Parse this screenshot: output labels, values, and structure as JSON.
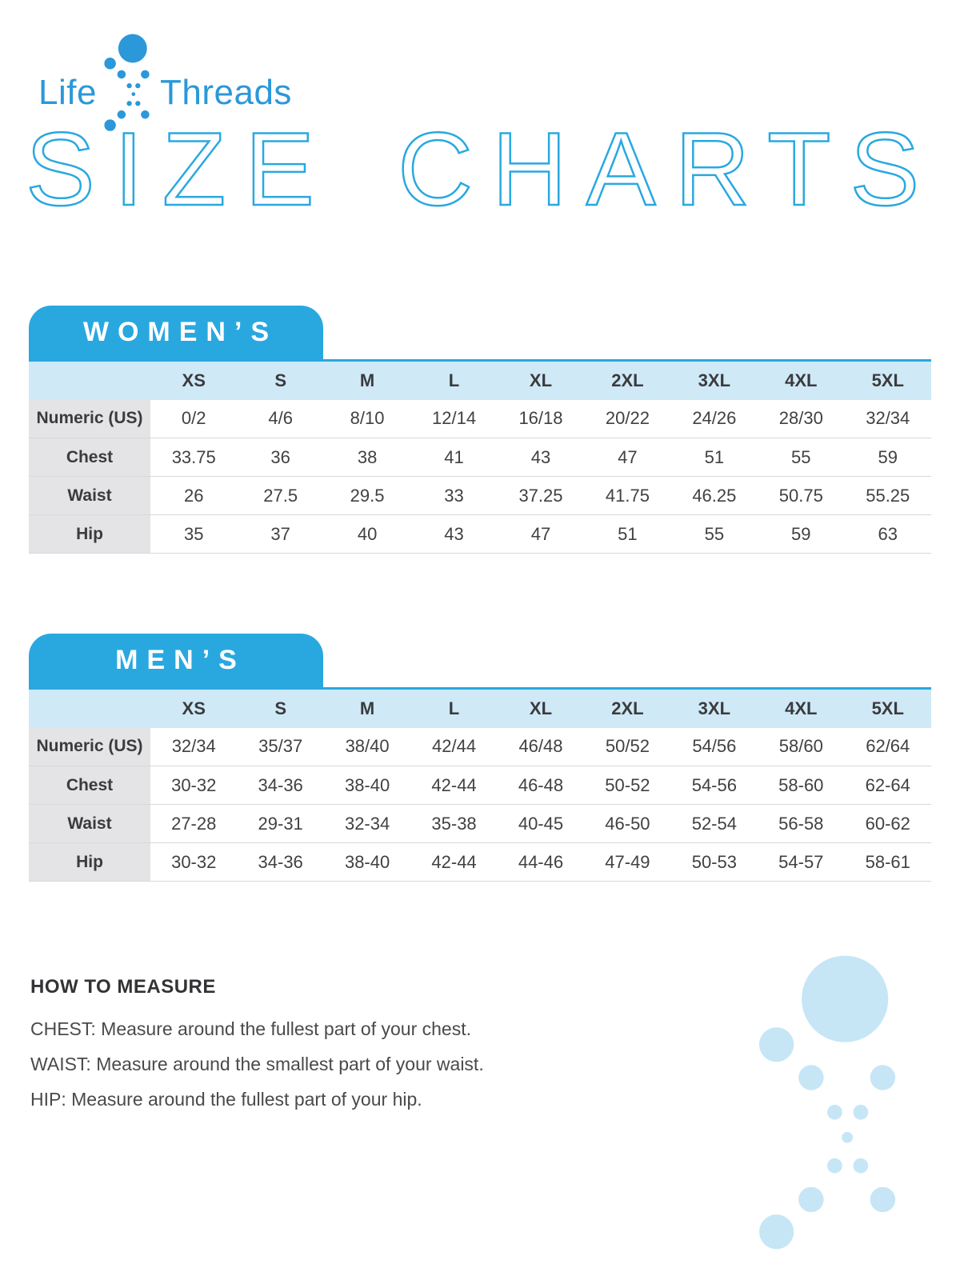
{
  "logo": {
    "life": "Life",
    "threads": "Threads"
  },
  "title": "SIZE CHARTS",
  "colors": {
    "brand_blue": "#2B98D9",
    "tab_blue": "#29A8E0",
    "header_row_bg": "#CFE9F7",
    "label_col_bg": "#E4E4E6",
    "text_dark": "#3B3B3D",
    "row_line": "#D9D9D9",
    "deco_blue": "#C6E6F6"
  },
  "sections": [
    {
      "label": "WOMEN’S",
      "size_headers": [
        "XS",
        "S",
        "M",
        "L",
        "XL",
        "2XL",
        "3XL",
        "4XL",
        "5XL"
      ],
      "rows": [
        {
          "label": "Numeric (US)",
          "values": [
            "0/2",
            "4/6",
            "8/10",
            "12/14",
            "16/18",
            "20/22",
            "24/26",
            "28/30",
            "32/34"
          ]
        },
        {
          "label": "Chest",
          "values": [
            "33.75",
            "36",
            "38",
            "41",
            "43",
            "47",
            "51",
            "55",
            "59"
          ]
        },
        {
          "label": "Waist",
          "values": [
            "26",
            "27.5",
            "29.5",
            "33",
            "37.25",
            "41.75",
            "46.25",
            "50.75",
            "55.25"
          ]
        },
        {
          "label": "Hip",
          "values": [
            "35",
            "37",
            "40",
            "43",
            "47",
            "51",
            "55",
            "59",
            "63"
          ]
        }
      ]
    },
    {
      "label": "MEN’S",
      "size_headers": [
        "XS",
        "S",
        "M",
        "L",
        "XL",
        "2XL",
        "3XL",
        "4XL",
        "5XL"
      ],
      "rows": [
        {
          "label": "Numeric (US)",
          "values": [
            "32/34",
            "35/37",
            "38/40",
            "42/44",
            "46/48",
            "50/52",
            "54/56",
            "58/60",
            "62/64"
          ]
        },
        {
          "label": "Chest",
          "values": [
            "30-32",
            "34-36",
            "38-40",
            "42-44",
            "46-48",
            "50-52",
            "54-56",
            "58-60",
            "62-64"
          ]
        },
        {
          "label": "Waist",
          "values": [
            "27-28",
            "29-31",
            "32-34",
            "35-38",
            "40-45",
            "46-50",
            "52-54",
            "56-58",
            "60-62"
          ]
        },
        {
          "label": "Hip",
          "values": [
            "30-32",
            "34-36",
            "38-40",
            "42-44",
            "44-46",
            "47-49",
            "50-53",
            "54-57",
            "58-61"
          ]
        }
      ]
    }
  ],
  "how_to_measure": {
    "heading": "HOW TO MEASURE",
    "lines": [
      "CHEST: Measure around the fullest part of your chest.",
      "WAIST: Measure around the smallest part of your waist.",
      "HIP: Measure around the fullest part of your hip."
    ]
  }
}
